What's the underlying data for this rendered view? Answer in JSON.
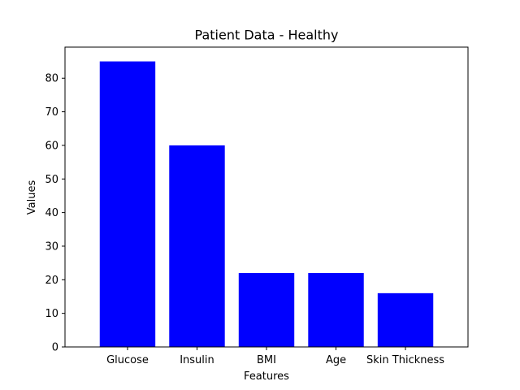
{
  "chart_data": {
    "type": "bar",
    "title": "Patient Data - Healthy",
    "xlabel": "Features",
    "ylabel": "Values",
    "categories": [
      "Glucose",
      "Insulin",
      "BMI",
      "Age",
      "Skin Thickness"
    ],
    "values": [
      85,
      60,
      22,
      22,
      16
    ],
    "ylim": [
      0,
      89.25
    ],
    "yticks": [
      0,
      10,
      20,
      30,
      40,
      50,
      60,
      70,
      80
    ],
    "bar_color": "#0000ff",
    "grid": false,
    "legend": "none"
  }
}
